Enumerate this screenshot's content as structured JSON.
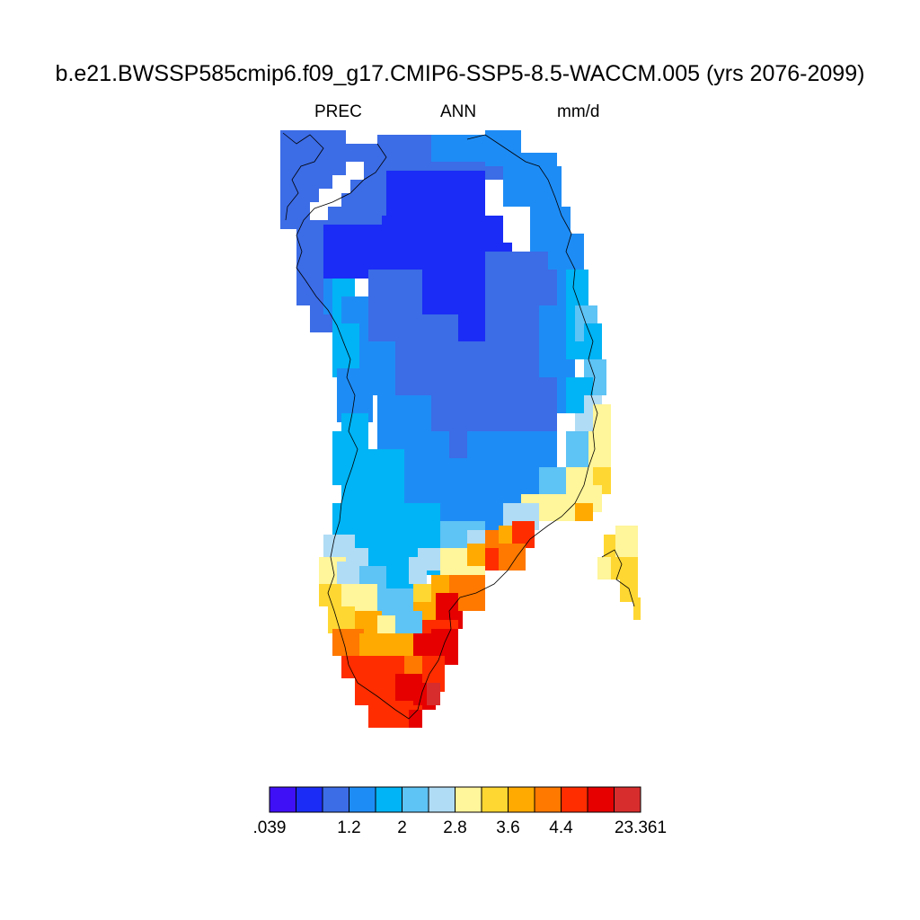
{
  "title": "b.e21.BWSSP585cmip6.f09_g17.CMIP6-SSP5-8.5-WACCM.005 (yrs 2076-2099)",
  "subtitle": {
    "left": "PREC",
    "center": "ANN",
    "right": "mm/d"
  },
  "colorbar": {
    "colors": [
      "#3f0ff5",
      "#1a2cf5",
      "#3c6ce6",
      "#1e8cf5",
      "#00b4f5",
      "#5ec3f5",
      "#b0dcf5",
      "#fff59a",
      "#ffd732",
      "#ffaa00",
      "#ff7800",
      "#ff2d00",
      "#e60000",
      "#d72d2d"
    ],
    "labels": [
      ".039",
      "1.2",
      "2",
      "2.8",
      "3.6",
      "4.4",
      "23.361"
    ]
  },
  "map": {
    "region": "Greenland",
    "variable": "annual mean precipitation"
  }
}
